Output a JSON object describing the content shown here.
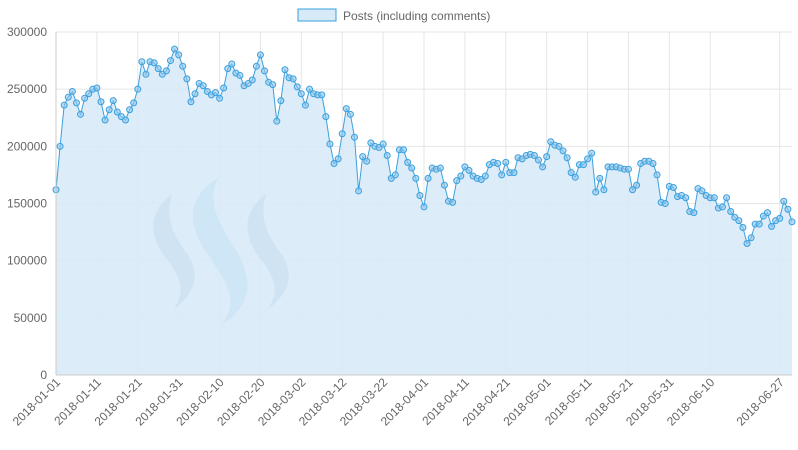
{
  "chart_data": {
    "type": "area",
    "legend_position": "top-center",
    "colors": {
      "fill": "#d6eaf8",
      "line": "#3ba0dd",
      "point": "#8fc6ec",
      "grid": "#e6e6e6",
      "logo_dark": "#a9b8cf",
      "logo_light": "#a9ccf2"
    },
    "series": [
      {
        "name": "Posts (including comments)",
        "start_date": "2018-01-01",
        "values": [
          162000,
          200000,
          236000,
          243000,
          248000,
          238000,
          228000,
          242000,
          246000,
          250000,
          251000,
          239000,
          223000,
          232000,
          240000,
          230000,
          226000,
          223000,
          232000,
          238000,
          250000,
          274000,
          263000,
          274000,
          273000,
          268000,
          263000,
          266000,
          275000,
          285000,
          280000,
          270000,
          259000,
          239000,
          246000,
          255000,
          253000,
          248000,
          245000,
          247000,
          242000,
          251000,
          268000,
          272000,
          264000,
          262000,
          253000,
          255000,
          258000,
          270000,
          280000,
          266000,
          256000,
          254000,
          222000,
          240000,
          267000,
          260000,
          259000,
          252000,
          246000,
          236000,
          250000,
          246000,
          245000,
          245000,
          226000,
          202000,
          185000,
          189000,
          211000,
          233000,
          228000,
          208000,
          161000,
          191000,
          187000,
          203000,
          200000,
          199000,
          202000,
          192000,
          172000,
          175000,
          197000,
          197000,
          186000,
          181000,
          172000,
          157000,
          147000,
          172000,
          181000,
          180000,
          181000,
          166000,
          152000,
          151000,
          170000,
          174000,
          182000,
          179000,
          174000,
          172000,
          171000,
          174000,
          184000,
          186000,
          185000,
          175000,
          186000,
          177000,
          177000,
          190000,
          189000,
          192000,
          193000,
          192000,
          188000,
          182000,
          191000,
          204000,
          201000,
          200000,
          196000,
          190000,
          177000,
          173000,
          184000,
          184000,
          189000,
          194000,
          160000,
          172000,
          162000,
          182000,
          182000,
          182000,
          181000,
          180000,
          180000,
          162000,
          166000,
          185000,
          187000,
          187000,
          185000,
          175000,
          151000,
          150000,
          165000,
          164000,
          156000,
          157000,
          155000,
          143000,
          142000,
          163000,
          161000,
          157000,
          155000,
          155000,
          146000,
          147000,
          155000,
          143000,
          138000,
          135000,
          129000,
          115000,
          120000,
          132000,
          132000,
          139000,
          142000,
          130000,
          135000,
          137000,
          152000,
          145000,
          134000
        ]
      }
    ],
    "x_ticks": [
      "2018-01-01",
      "2018-01-11",
      "2018-01-21",
      "2018-01-31",
      "2018-02-10",
      "2018-02-20",
      "2018-03-02",
      "2018-03-12",
      "2018-03-22",
      "2018-04-01",
      "2018-04-11",
      "2018-04-21",
      "2018-05-01",
      "2018-05-11",
      "2018-05-21",
      "2018-05-31",
      "2018-06-10",
      "2018-06-27"
    ],
    "y_ticks": [
      "0",
      "50000",
      "100000",
      "150000",
      "200000",
      "250000",
      "300000"
    ],
    "ylim": [
      0,
      300000
    ],
    "grid": true
  }
}
